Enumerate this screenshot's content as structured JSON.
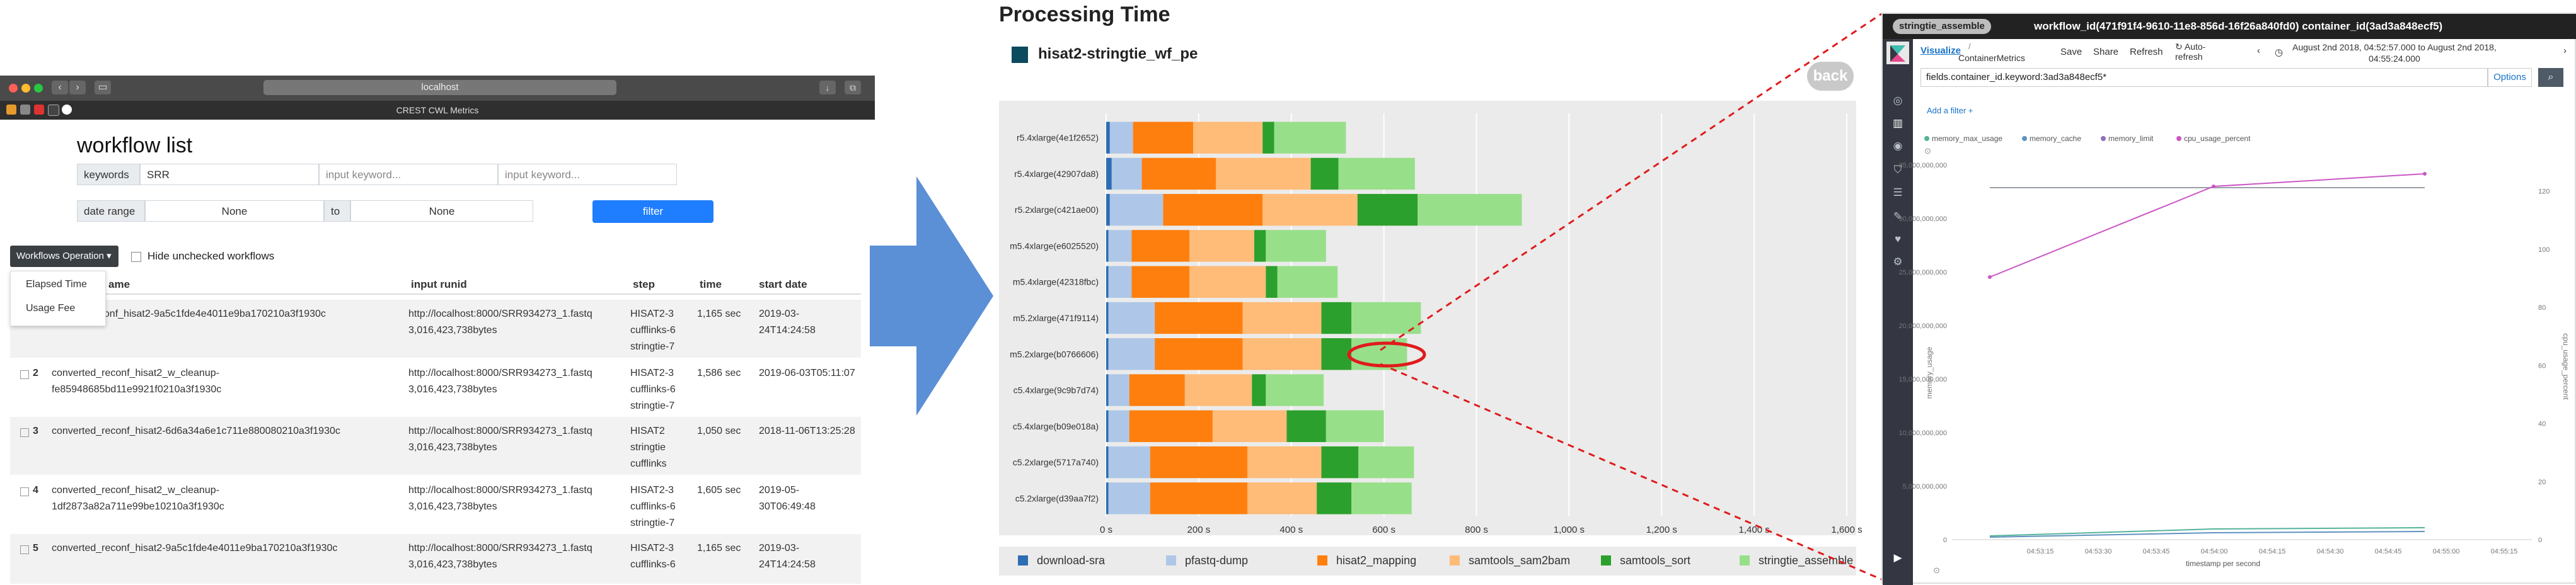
{
  "browser": {
    "url": "localhost",
    "tab_title": "CREST CWL Metrics",
    "page_title": "workflow list",
    "filters": {
      "keywords_label": "keywords",
      "keywords_value": "SRR",
      "input2_placeholder": "input keyword...",
      "input3_placeholder": "input keyword...",
      "date_range_label": "date range",
      "date_from": "None",
      "to_label": "to",
      "date_to": "None",
      "filter_button": "filter"
    },
    "workflows_operation": "Workflows Operation ▾",
    "hide_unchecked": "Hide unchecked workflows",
    "dropdown_items": [
      "Elapsed Time",
      "Usage Fee"
    ],
    "columns": {
      "name": "ame",
      "runid": "input runid",
      "step": "step",
      "time": "time",
      "start": "start date"
    },
    "rows": [
      {
        "num": "",
        "name": "_conf_hisat2-9a5c1fde4e4011e9ba170210a3f1930c",
        "runid": [
          "http://localhost:8000/SRR934273_1.fastq",
          "3,016,423,738bytes"
        ],
        "step": [
          "HISAT2-3",
          "cufflinks-6",
          "stringtie-7"
        ],
        "time": "1,165 sec",
        "start": [
          "2019-03-",
          "24T14:24:58"
        ]
      },
      {
        "num": "2",
        "name": [
          "converted_reconf_hisat2_w_cleanup-",
          "fe85948685bd11e9921f0210a3f1930c"
        ],
        "runid": [
          "http://localhost:8000/SRR934273_1.fastq",
          "3,016,423,738bytes"
        ],
        "step": [
          "HISAT2-3",
          "cufflinks-6",
          "stringtie-7"
        ],
        "time": "1,586 sec",
        "start": [
          "2019-06-03T05:11:07"
        ]
      },
      {
        "num": "3",
        "name": [
          "converted_reconf_hisat2-6d6a34a6e1c711e880080210a3f1930c"
        ],
        "runid": [
          "http://localhost:8000/SRR934273_1.fastq",
          "3,016,423,738bytes"
        ],
        "step": [
          "HISAT2",
          "stringtie",
          "cufflinks"
        ],
        "time": "1,050 sec",
        "start": [
          "2018-11-06T13:25:28"
        ]
      },
      {
        "num": "4",
        "name": [
          "converted_reconf_hisat2_w_cleanup-",
          "1df2873a82a711e99be10210a3f1930c"
        ],
        "runid": [
          "http://localhost:8000/SRR934273_1.fastq",
          "3,016,423,738bytes"
        ],
        "step": [
          "HISAT2-3",
          "cufflinks-6",
          "stringtie-7"
        ],
        "time": "1,605 sec",
        "start": [
          "2019-05-",
          "30T06:49:48"
        ]
      },
      {
        "num": "5",
        "name": [
          "converted_reconf_hisat2-9a5c1fde4e4011e9ba170210a3f1930c"
        ],
        "runid": [
          "http://localhost:8000/SRR934273_1.fastq",
          "3,016,423,738bytes"
        ],
        "step": [
          "HISAT2-3",
          "cufflinks-6"
        ],
        "time": "1,165 sec",
        "start": [
          "2019-03-",
          "24T14:24:58"
        ]
      }
    ]
  },
  "processing": {
    "title": "Processing Time",
    "subtitle": "hisat2-stringtie_wf_pe",
    "back": "back"
  },
  "chart_data": {
    "type": "bar",
    "orientation": "horizontal-stacked",
    "title": "",
    "xlabel": "",
    "ylabel": "",
    "xlim": [
      0,
      1600
    ],
    "xticks": [
      "0 s",
      "200 s",
      "400 s",
      "600 s",
      "800 s",
      "1,000 s",
      "1,200 s",
      "1,400 s",
      "1,600 s"
    ],
    "categories": [
      "r5.4xlarge(4e1f2652)",
      "r5.4xlarge(42907da8)",
      "r5.2xlarge(c421ae00)",
      "m5.4xlarge(e6025520)",
      "m5.4xlarge(42318fbc)",
      "m5.2xlarge(471f9114)",
      "m5.2xlarge(b0766606)",
      "c5.4xlarge(9c9b7d74)",
      "c5.4xlarge(b09e018a)",
      "c5.2xlarge(5717a740)",
      "c5.2xlarge(d39aa7f2)"
    ],
    "series": [
      {
        "name": "download-sra",
        "color": "#2d6db2",
        "values": [
          8,
          12,
          8,
          5,
          5,
          5,
          5,
          5,
          5,
          5,
          5
        ]
      },
      {
        "name": "pfastq-dump",
        "color": "#aec7e8",
        "values": [
          50,
          65,
          115,
          50,
          50,
          100,
          100,
          45,
          45,
          90,
          90
        ]
      },
      {
        "name": "hisat2_mapping",
        "color": "#ff7f0e",
        "values": [
          130,
          160,
          215,
          125,
          125,
          190,
          190,
          120,
          180,
          210,
          210
        ]
      },
      {
        "name": "samtools_sam2bam",
        "color": "#ffbb78",
        "values": [
          150,
          205,
          205,
          140,
          165,
          170,
          170,
          145,
          160,
          160,
          150
        ]
      },
      {
        "name": "samtools_sort",
        "color": "#2ca02c",
        "values": [
          25,
          60,
          130,
          25,
          25,
          65,
          65,
          30,
          85,
          80,
          75
        ]
      },
      {
        "name": "stringtie_assemble",
        "color": "#98df8a",
        "values": [
          155,
          165,
          225,
          130,
          130,
          150,
          120,
          125,
          125,
          120,
          130
        ]
      }
    ]
  },
  "kibana": {
    "tag": "stringtie_assemble",
    "header": "workflow_id(471f91f4-9610-11e8-856d-16f26a840fd0) container_id(3ad3a848ecf5)",
    "visualize": "Visualize",
    "breadcrumb": "ContainerMetrics",
    "save": "Save",
    "share": "Share",
    "refresh": "Refresh",
    "auto_refresh": [
      "Auto-",
      "refresh"
    ],
    "daterange": [
      "August 2nd 2018, 04:52:57.000 to August 2nd 2018,",
      "04:55:24.000"
    ],
    "query": "fields.container_id.keyword:3ad3a848ecf5*",
    "options": "Options",
    "add_filter": "Add a filter +",
    "legend": [
      {
        "name": "memory_max_usage",
        "color": "#54b399"
      },
      {
        "name": "memory_cache",
        "color": "#6092c0"
      },
      {
        "name": "memory_limit",
        "color": "#9170b8"
      },
      {
        "name": "cpu_usage_percent",
        "color": "#ca57c6"
      }
    ],
    "y_left_ticks": [
      "0",
      "5,000,000,000",
      "10,000,000,000",
      "15,000,000,000",
      "20,000,000,000",
      "25,000,000,000",
      "30,000,000,000",
      "35,000,000,000"
    ],
    "y_right_ticks": [
      "0",
      "20",
      "40",
      "60",
      "80",
      "100",
      "120"
    ],
    "x_ticks": [
      "04:53:15",
      "04:53:30",
      "04:53:45",
      "04:54:00",
      "04:54:15",
      "04:54:30",
      "04:54:45",
      "04:55:00",
      "04:55:15"
    ],
    "y_left_label": "memory_usage",
    "y_right_label": "cpu_usage_percent",
    "x_label": "timestamp per second"
  }
}
